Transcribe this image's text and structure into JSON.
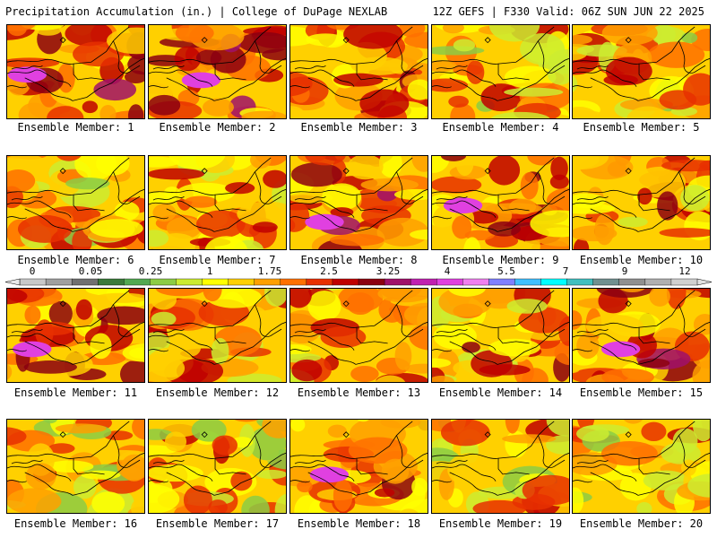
{
  "header": {
    "left": "Precipitation Accumulation (in.) | College of DuPage NEXLAB",
    "right": "12Z GEFS | F330 Valid: 06Z SUN JUN 22 2025"
  },
  "colorbar": {
    "labels": [
      "0",
      "0.05",
      "0.25",
      "1",
      "1.75",
      "2.5",
      "3.25",
      "4",
      "5.5",
      "7",
      "9",
      "12"
    ],
    "colors": [
      "#c8c8c8",
      "#a0a0a0",
      "#707070",
      "#3a7a3a",
      "#52a852",
      "#8ccc44",
      "#ccec30",
      "#ffff00",
      "#ffd000",
      "#ffa000",
      "#ff7000",
      "#e83000",
      "#c00000",
      "#8c0010",
      "#a0106a",
      "#c020b0",
      "#e040e0",
      "#f080f0",
      "#8080ff",
      "#40c0ff",
      "#00ffff",
      "#40c0c0",
      "#709090",
      "#909090",
      "#b0b0b0",
      "#d0d0d0"
    ]
  },
  "members": [
    {
      "label": "Ensemble Member: 1",
      "wet": 0.85
    },
    {
      "label": "Ensemble Member: 2",
      "wet": 0.95
    },
    {
      "label": "Ensemble Member: 3",
      "wet": 0.75
    },
    {
      "label": "Ensemble Member: 4",
      "wet": 0.55
    },
    {
      "label": "Ensemble Member: 5",
      "wet": 0.55
    },
    {
      "label": "Ensemble Member: 6",
      "wet": 0.5
    },
    {
      "label": "Ensemble Member: 7",
      "wet": 0.6
    },
    {
      "label": "Ensemble Member: 8",
      "wet": 0.9
    },
    {
      "label": "Ensemble Member: 9",
      "wet": 0.8
    },
    {
      "label": "Ensemble Member: 10",
      "wet": 0.7
    },
    {
      "label": "Ensemble Member: 11",
      "wet": 0.8
    },
    {
      "label": "Ensemble Member: 12",
      "wet": 0.55
    },
    {
      "label": "Ensemble Member: 13",
      "wet": 0.6
    },
    {
      "label": "Ensemble Member: 14",
      "wet": 0.65
    },
    {
      "label": "Ensemble Member: 15",
      "wet": 0.9
    },
    {
      "label": "Ensemble Member: 16",
      "wet": 0.45
    },
    {
      "label": "Ensemble Member: 17",
      "wet": 0.5
    },
    {
      "label": "Ensemble Member: 18",
      "wet": 0.8
    },
    {
      "label": "Ensemble Member: 19",
      "wet": 0.5
    },
    {
      "label": "Ensemble Member: 20",
      "wet": 0.45
    }
  ]
}
